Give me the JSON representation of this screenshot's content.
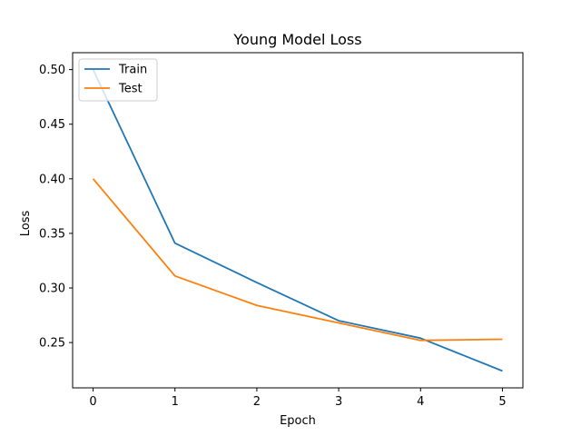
{
  "chart_data": {
    "type": "line",
    "title": "Young Model Loss",
    "xlabel": "Epoch",
    "ylabel": "Loss",
    "x": [
      0,
      1,
      2,
      3,
      4,
      5
    ],
    "xticks": [
      0,
      1,
      2,
      3,
      4,
      5
    ],
    "xtick_labels": [
      "0",
      "1",
      "2",
      "3",
      "4",
      "5"
    ],
    "yticks": [
      0.25,
      0.3,
      0.35,
      0.4,
      0.45,
      0.5
    ],
    "ytick_labels": [
      "0.25",
      "0.30",
      "0.35",
      "0.40",
      "0.45",
      "0.50"
    ],
    "xlim": [
      -0.25,
      5.25
    ],
    "ylim": [
      0.2085,
      0.5155
    ],
    "grid": false,
    "legend_position": "top-left",
    "series": [
      {
        "name": "Train",
        "color": "#1f77b4",
        "values": [
          0.5,
          0.341,
          0.305,
          0.27,
          0.254,
          0.224
        ]
      },
      {
        "name": "Test",
        "color": "#ff7f0e",
        "values": [
          0.4,
          0.311,
          0.284,
          0.268,
          0.252,
          0.253
        ]
      }
    ]
  }
}
